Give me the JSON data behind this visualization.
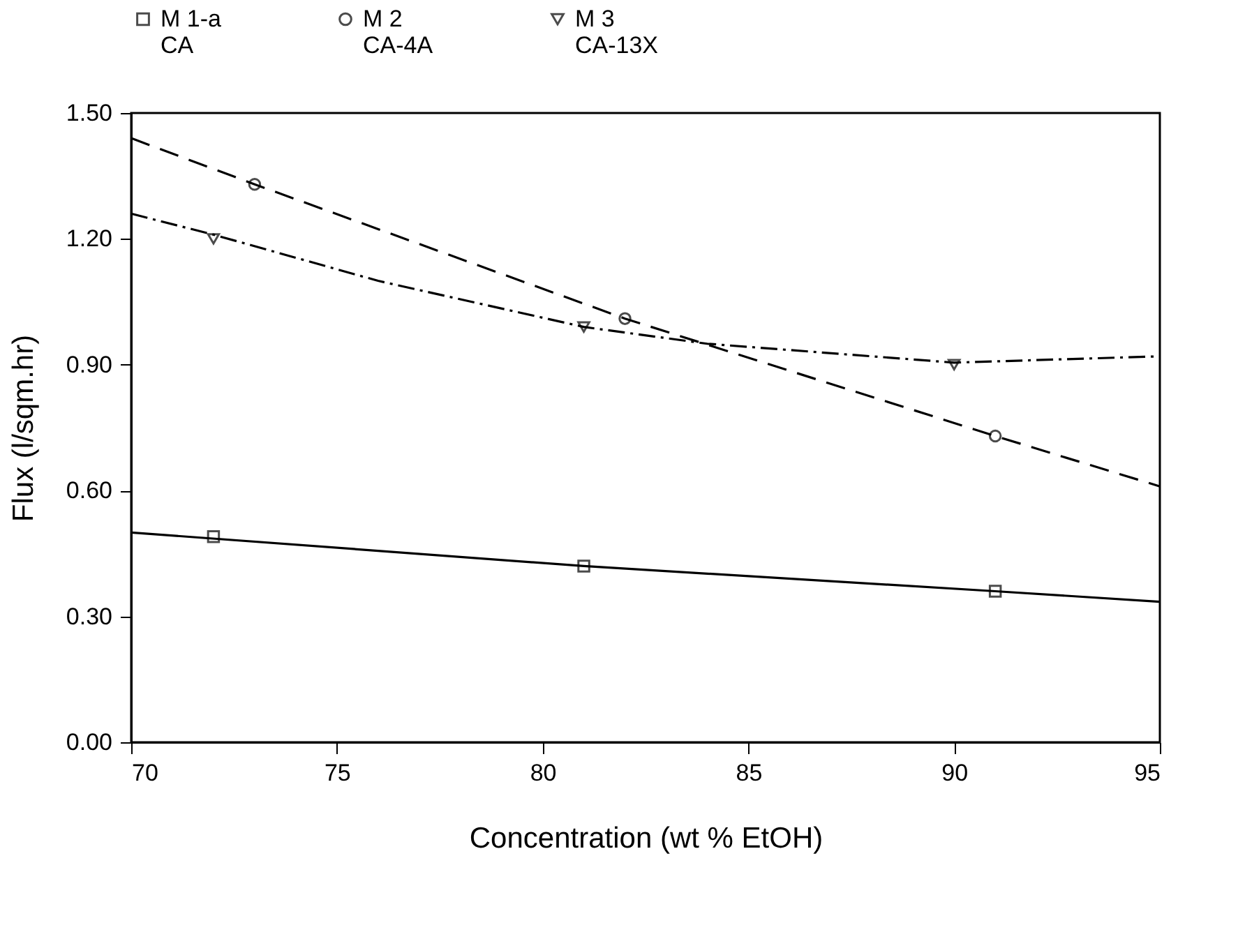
{
  "chart_data": {
    "type": "scatter",
    "xlabel": "Concentration (wt % EtOH)",
    "ylabel": "Flux (l/sqm.hr)",
    "xlim": [
      70,
      95
    ],
    "xticks": [
      70,
      75,
      80,
      85,
      90,
      95
    ],
    "ylim": [
      0,
      1.5
    ],
    "yticks": [
      {
        "value": 0,
        "label": "0.00"
      },
      {
        "value": 0.3,
        "label": "0.30"
      },
      {
        "value": 0.6,
        "label": "0.60"
      },
      {
        "value": 0.9,
        "label": "0.90"
      },
      {
        "value": 1.2,
        "label": "1.20"
      },
      {
        "value": 1.5,
        "label": "1.50"
      }
    ],
    "grid": false,
    "legend": "top",
    "series": [
      {
        "name": "M 1-a\nCA",
        "marker": "square",
        "color": "#000000",
        "x": [
          72,
          81,
          91
        ],
        "values": [
          0.49,
          0.42,
          0.36
        ]
      },
      {
        "name": "M 2\nCA-4A",
        "marker": "circle",
        "color": "#000000",
        "x": [
          73,
          82,
          91
        ],
        "values": [
          1.33,
          1.01,
          0.73
        ]
      },
      {
        "name": "M 3\nCA-13X",
        "marker": "triangle",
        "color": "#000000",
        "x": [
          72,
          81,
          90
        ],
        "values": [
          1.2,
          0.99,
          0.9
        ]
      },
      {
        "type": "line",
        "line_style": "solid",
        "color": "#000000",
        "x": [
          70,
          81,
          91,
          95
        ],
        "values": [
          0.5,
          0.42,
          0.36,
          0.335
        ]
      },
      {
        "type": "line",
        "line_style": "dashed",
        "color": "#000000",
        "x": [
          70,
          73,
          82,
          91,
          95
        ],
        "values": [
          1.44,
          1.33,
          1.01,
          0.73,
          0.61
        ]
      },
      {
        "type": "line",
        "line_style": "dashed-dotted",
        "color": "#000000",
        "x": [
          70,
          72,
          76,
          81,
          84,
          90,
          95
        ],
        "values": [
          1.26,
          1.21,
          1.1,
          0.99,
          0.95,
          0.905,
          0.92
        ]
      }
    ]
  }
}
